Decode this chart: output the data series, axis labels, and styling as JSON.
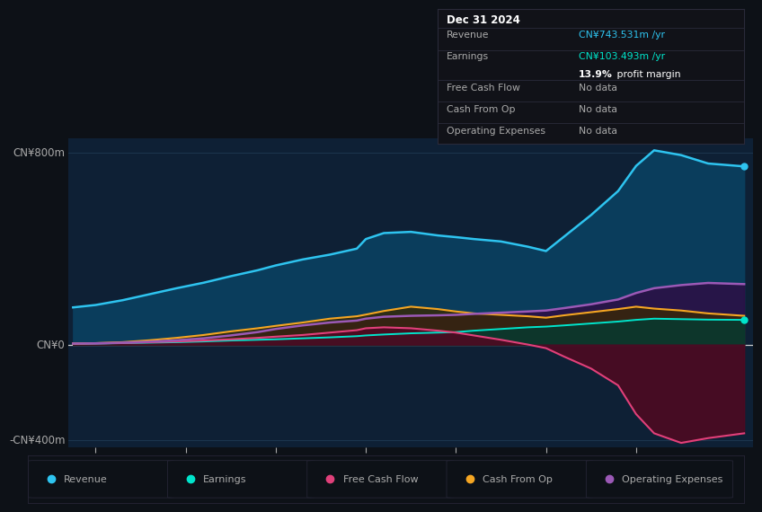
{
  "bg_color": "#0d1117",
  "plot_bg_color": "#0e2035",
  "y_label_800": "CN¥800m",
  "y_label_0": "CN¥0",
  "y_label_neg400": "-CN¥400m",
  "ylim": [
    -430,
    860
  ],
  "xlim": [
    2017.7,
    2025.3
  ],
  "x_ticks": [
    2018,
    2019,
    2020,
    2021,
    2022,
    2023,
    2024
  ],
  "revenue_color": "#2ec4f0",
  "revenue_fill": "#0a3d5c",
  "earnings_color": "#00e5cc",
  "earnings_fill": "#063a30",
  "fcf_color": "#e0407a",
  "fcf_fill": "#4d0a22",
  "cashfromop_color": "#f5a623",
  "cashfromop_fill": "#3a2800",
  "opex_color": "#9b59b6",
  "opex_fill": "#2d0f45",
  "revenue_x": [
    2017.75,
    2018.0,
    2018.3,
    2018.6,
    2018.9,
    2019.2,
    2019.5,
    2019.8,
    2020.0,
    2020.3,
    2020.6,
    2020.9,
    2021.0,
    2021.2,
    2021.5,
    2021.8,
    2022.0,
    2022.2,
    2022.5,
    2022.8,
    2023.0,
    2023.2,
    2023.5,
    2023.8,
    2024.0,
    2024.2,
    2024.5,
    2024.8,
    2025.2
  ],
  "revenue_y": [
    155,
    165,
    185,
    210,
    235,
    258,
    285,
    310,
    330,
    355,
    375,
    400,
    440,
    465,
    470,
    455,
    448,
    440,
    430,
    408,
    390,
    450,
    540,
    640,
    745,
    810,
    790,
    755,
    743
  ],
  "earnings_x": [
    2017.75,
    2018.0,
    2018.3,
    2018.6,
    2018.9,
    2019.2,
    2019.5,
    2019.8,
    2020.0,
    2020.3,
    2020.6,
    2020.9,
    2021.0,
    2021.2,
    2021.5,
    2021.8,
    2022.0,
    2022.2,
    2022.5,
    2022.8,
    2023.0,
    2023.2,
    2023.5,
    2023.8,
    2024.0,
    2024.2,
    2024.5,
    2024.8,
    2025.2
  ],
  "earnings_y": [
    3,
    4,
    6,
    8,
    10,
    13,
    17,
    20,
    22,
    26,
    30,
    35,
    38,
    42,
    47,
    50,
    52,
    58,
    65,
    72,
    75,
    80,
    88,
    96,
    103,
    108,
    106,
    104,
    103
  ],
  "fcf_x": [
    2017.75,
    2018.0,
    2018.3,
    2018.6,
    2018.9,
    2019.2,
    2019.5,
    2019.8,
    2020.0,
    2020.3,
    2020.6,
    2020.9,
    2021.0,
    2021.2,
    2021.5,
    2021.8,
    2022.0,
    2022.2,
    2022.5,
    2022.8,
    2023.0,
    2023.2,
    2023.5,
    2023.8,
    2024.0,
    2024.2,
    2024.5,
    2024.8,
    2025.2
  ],
  "fcf_y": [
    4,
    5,
    7,
    10,
    13,
    17,
    22,
    28,
    33,
    40,
    50,
    60,
    68,
    72,
    68,
    58,
    50,
    38,
    20,
    0,
    -15,
    -50,
    -100,
    -170,
    -290,
    -370,
    -410,
    -390,
    -370
  ],
  "cashfromop_x": [
    2017.75,
    2018.0,
    2018.3,
    2018.6,
    2018.9,
    2019.2,
    2019.5,
    2019.8,
    2020.0,
    2020.3,
    2020.6,
    2020.9,
    2021.0,
    2021.2,
    2021.5,
    2021.8,
    2022.0,
    2022.2,
    2022.5,
    2022.8,
    2023.0,
    2023.2,
    2023.5,
    2023.8,
    2024.0,
    2024.2,
    2024.5,
    2024.8,
    2025.2
  ],
  "cashfromop_y": [
    4,
    6,
    10,
    18,
    28,
    40,
    55,
    68,
    78,
    92,
    108,
    118,
    125,
    140,
    158,
    148,
    138,
    130,
    124,
    118,
    112,
    122,
    135,
    148,
    158,
    150,
    142,
    130,
    120
  ],
  "opex_x": [
    2017.75,
    2018.0,
    2018.3,
    2018.6,
    2018.9,
    2019.2,
    2019.5,
    2019.8,
    2020.0,
    2020.3,
    2020.6,
    2020.9,
    2021.0,
    2021.2,
    2021.5,
    2021.8,
    2022.0,
    2022.2,
    2022.5,
    2022.8,
    2023.0,
    2023.2,
    2023.5,
    2023.8,
    2024.0,
    2024.2,
    2024.5,
    2024.8,
    2025.2
  ],
  "opex_y": [
    4,
    5,
    8,
    12,
    18,
    26,
    38,
    52,
    65,
    80,
    92,
    100,
    108,
    116,
    120,
    122,
    124,
    128,
    133,
    138,
    142,
    152,
    168,
    188,
    215,
    235,
    248,
    257,
    252
  ],
  "tooltip_title": "Dec 31 2024",
  "tooltip_revenue_label": "Revenue",
  "tooltip_revenue_value": "CN¥743.531m",
  "tooltip_earnings_label": "Earnings",
  "tooltip_earnings_value": "CN¥103.493m",
  "tooltip_margin_bold": "13.9%",
  "tooltip_margin_rest": " profit margin",
  "tooltip_fcf_label": "Free Cash Flow",
  "tooltip_cashop_label": "Cash From Op",
  "tooltip_opex_label": "Operating Expenses",
  "tooltip_nodata": "No data",
  "legend_items": [
    "Revenue",
    "Earnings",
    "Free Cash Flow",
    "Cash From Op",
    "Operating Expenses"
  ],
  "legend_colors": [
    "#2ec4f0",
    "#00e5cc",
    "#e0407a",
    "#f5a623",
    "#9b59b6"
  ],
  "grid_color": "#1e3a52",
  "text_color": "#aaaaaa",
  "title_color": "#ffffff",
  "zero_line_color": "#cccccc",
  "tooltip_bg": "#111218",
  "tooltip_border": "#2a2a3a",
  "legend_border": "#252535"
}
